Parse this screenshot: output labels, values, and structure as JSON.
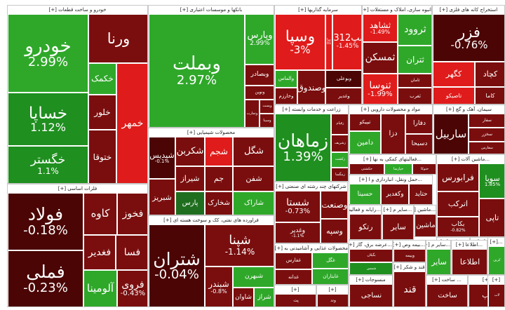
{
  "colors": {
    "strong_positive": "#2fa82a",
    "mid_positive": "#1f8f1f",
    "weak_positive": "#1f6e1f",
    "weak_negative": "#7a0e0e",
    "strong_negative": "#4b0505",
    "bright_negative": "#e01b1b"
  },
  "sectors": [
    {
      "header": "خودرو و ساخت قطعات [+]",
      "tiles": [
        {
          "symbol": "خودرو",
          "change": "2.99%",
          "tone": "strong_positive"
        },
        {
          "symbol": "خساپا",
          "change": "1.12%",
          "tone": "mid_positive"
        },
        {
          "symbol": "خگستر",
          "change": "1.1%",
          "tone": "mid_positive"
        },
        {
          "symbol": "ورنا",
          "change": "",
          "tone": "weak_negative"
        },
        {
          "symbol": "خکمک",
          "change": "",
          "tone": "strong_positive"
        },
        {
          "symbol": "خلور",
          "change": "",
          "tone": "weak_negative"
        },
        {
          "symbol": "ختوقا",
          "change": "",
          "tone": "weak_negative"
        },
        {
          "symbol": "خمهر",
          "change": "",
          "tone": "bright_negative"
        }
      ]
    },
    {
      "header": "فلزات اساسی [+]",
      "tiles": [
        {
          "symbol": "فولاد",
          "change": "-0.18%",
          "tone": "strong_negative"
        },
        {
          "symbol": "فملی",
          "change": "-0.23%",
          "tone": "strong_negative"
        },
        {
          "symbol": "کاوه",
          "change": "",
          "tone": "weak_negative"
        },
        {
          "symbol": "فخوز",
          "change": "",
          "tone": "weak_negative"
        },
        {
          "symbol": "فغدیر",
          "change": "",
          "tone": "weak_negative"
        },
        {
          "symbol": "فسا",
          "change": "",
          "tone": "weak_negative"
        },
        {
          "symbol": "آلومینا",
          "change": "",
          "tone": "strong_positive"
        },
        {
          "symbol": "فروی",
          "change": "-0.43%",
          "tone": "weak_negative"
        }
      ]
    },
    {
      "header": "بانکها و موسسات اعتباری [+]",
      "tiles": [
        {
          "symbol": "وبملت",
          "change": "2.97%",
          "tone": "strong_positive"
        },
        {
          "symbol": "وپارس",
          "change": "2.99%",
          "tone": "strong_positive"
        },
        {
          "symbol": "وبصادر",
          "change": "",
          "tone": "weak_negative"
        },
        {
          "symbol": "ونوین",
          "change": "",
          "tone": "weak_negative"
        },
        {
          "symbol": "وتجارت",
          "change": "",
          "tone": "weak_negative"
        },
        {
          "symbol": "وپست",
          "change": "",
          "tone": "weak_negative"
        },
        {
          "symbol": "وسینا",
          "change": "",
          "tone": "weak_negative"
        }
      ]
    },
    {
      "header": "محصولات شیمیایی [+]",
      "tiles": [
        {
          "symbol": "شپدیس",
          "change": "-0.1%",
          "tone": "strong_negative"
        },
        {
          "symbol": "شکربن",
          "change": "",
          "tone": "weak_negative"
        },
        {
          "symbol": "شجم",
          "change": "",
          "tone": "bright_negative"
        },
        {
          "symbol": "شگل",
          "change": "",
          "tone": "weak_negative"
        },
        {
          "symbol": "شیراز",
          "change": "",
          "tone": "weak_negative"
        },
        {
          "symbol": "جم",
          "change": "",
          "tone": "weak_negative"
        },
        {
          "symbol": "شفن",
          "change": "",
          "tone": "weak_negative"
        },
        {
          "symbol": "پارس",
          "change": "",
          "tone": "weak_positive"
        },
        {
          "symbol": "شخارک",
          "change": "",
          "tone": "weak_negative"
        },
        {
          "symbol": "شاراک",
          "change": "",
          "tone": "strong_positive"
        },
        {
          "symbol": "شبریز",
          "change": "",
          "tone": "weak_negative"
        },
        {
          "symbol": "شفارس",
          "change": "",
          "tone": "strong_positive"
        }
      ]
    },
    {
      "header": "فراورده های نفتی، کک و سوخت هسته ای [+]",
      "tiles": [
        {
          "symbol": "شتران",
          "change": "-0.04%",
          "tone": "strong_negative"
        },
        {
          "symbol": "شپنا",
          "change": "-1.14%",
          "tone": "weak_negative"
        },
        {
          "symbol": "شبندر",
          "change": "-0.8%",
          "tone": "weak_negative"
        },
        {
          "symbol": "شبهرن",
          "change": "",
          "tone": "strong_positive"
        },
        {
          "symbol": "شاوان",
          "change": "",
          "tone": "weak_negative"
        },
        {
          "symbol": "شراز",
          "change": "",
          "tone": "strong_positive"
        }
      ]
    },
    {
      "header": "سرمایه گذاریها [+]",
      "tiles": [
        {
          "symbol": "وسپا",
          "change": "-3%",
          "tone": "bright_negative"
        },
        {
          "symbol": "سا",
          "change": "01",
          "tone": "bright_negative"
        },
        {
          "symbol": "سپ0312",
          "change": "-1.45%",
          "tone": "bright_negative"
        },
        {
          "symbol": "والماس",
          "change": "",
          "tone": "strong_positive"
        },
        {
          "symbol": "وخارزم",
          "change": "",
          "tone": "weak_negative"
        },
        {
          "symbol": "وصندوق",
          "change": "",
          "tone": "weak_negative"
        },
        {
          "symbol": "وبوعلی",
          "change": "",
          "tone": "strong_negative"
        },
        {
          "symbol": "وغدیر",
          "change": "",
          "tone": "weak_negative"
        }
      ]
    },
    {
      "header": "انبوه سازی، املاک و مستغلات [+]",
      "tiles": [
        {
          "symbol": "ثشاهد",
          "change": "-1.49%",
          "tone": "bright_negative"
        },
        {
          "symbol": "ثمسکن",
          "change": "",
          "tone": "weak_negative"
        },
        {
          "symbol": "ثنوسا",
          "change": "-1.99%",
          "tone": "bright_negative"
        },
        {
          "symbol": "ثروود",
          "change": "",
          "tone": "strong_positive"
        },
        {
          "symbol": "ثتران",
          "change": "",
          "tone": "strong_positive"
        },
        {
          "symbol": "ثامان",
          "change": "",
          "tone": "weak_negative"
        },
        {
          "symbol": "ثغرب",
          "change": "",
          "tone": "weak_negative"
        },
        {
          "symbol": "ثباغ",
          "change": "",
          "tone": "strong_positive"
        },
        {
          "symbol": "ثعمرا",
          "change": "",
          "tone": "strong_positive"
        }
      ]
    },
    {
      "header": "استخراج کانه های فلزی [+]",
      "tiles": [
        {
          "symbol": "فزر",
          "change": "-0.76%",
          "tone": "strong_negative"
        },
        {
          "symbol": "کگهر",
          "change": "",
          "tone": "bright_negative"
        },
        {
          "symbol": "کچاد",
          "change": "",
          "tone": "weak_negative"
        },
        {
          "symbol": "کاما",
          "change": "",
          "tone": "weak_negative"
        },
        {
          "symbol": "تاصیکو",
          "change": "",
          "tone": "bright_negative"
        },
        {
          "symbol": "کگل",
          "change": "",
          "tone": "strong_negative"
        },
        {
          "symbol": "کروی",
          "change": "",
          "tone": "weak_negative"
        }
      ]
    },
    {
      "header": "زراعت و خدمات وابسته [+]",
      "tiles": [
        {
          "symbol": "زماهان",
          "change": "1.39%",
          "tone": "mid_positive"
        },
        {
          "symbol": "زقیام",
          "change": "",
          "tone": "weak_negative"
        },
        {
          "symbol": "زشریف",
          "change": "",
          "tone": "weak_negative"
        },
        {
          "symbol": "زکشت",
          "change": "",
          "tone": "strong_positive"
        },
        {
          "symbol": "زمگسا",
          "change": "",
          "tone": "weak_negative"
        }
      ]
    },
    {
      "header": "مواد و محصولات دارویی [+]",
      "tiles": [
        {
          "symbol": "تیپیکو",
          "change": "",
          "tone": "weak_negative"
        },
        {
          "symbol": "دامین",
          "change": "",
          "tone": "strong_positive"
        },
        {
          "symbol": "دزا",
          "change": "",
          "tone": "weak_negative"
        },
        {
          "symbol": "دفارا",
          "change": "",
          "tone": "weak_negative"
        },
        {
          "symbol": "دسبحا",
          "change": "",
          "tone": "weak_negative"
        },
        {
          "symbol": "دلر",
          "change": "",
          "tone": "weak_negative"
        },
        {
          "symbol": "دجابر",
          "change": "",
          "tone": "strong_positive"
        }
      ]
    },
    {
      "header": "سیمان، آهک و گچ [+]",
      "tiles": [
        {
          "symbol": "ساربیل",
          "change": "",
          "tone": "strong_negative"
        },
        {
          "symbol": "سفار",
          "change": "",
          "tone": "weak_negative"
        },
        {
          "symbol": "سخزر",
          "change": "",
          "tone": "weak_negative"
        },
        {
          "symbol": "سفارس",
          "change": "",
          "tone": "weak_negative"
        },
        {
          "symbol": "سصفها",
          "change": "",
          "tone": "strong_positive"
        },
        {
          "symbol": "سشرق",
          "change": "",
          "tone": "weak_negative"
        }
      ]
    },
    {
      "header": "شرکتهای چند رشته ای صنعتی [+]",
      "tiles": [
        {
          "symbol": "شستا",
          "change": "-0.73%",
          "tone": "weak_negative"
        },
        {
          "symbol": "وغدیر",
          "change": "-1.1%",
          "tone": "weak_negative"
        },
        {
          "symbol": "وصنعت",
          "change": "",
          "tone": "weak_negative"
        },
        {
          "symbol": "وسپه",
          "change": "",
          "tone": "weak_negative"
        },
        {
          "symbol": "واتی",
          "change": "",
          "tone": "strong_negative"
        }
      ]
    },
    {
      "header": "...فعالیتهای کمکی به نها [+]",
      "tiles": [
        {
          "symbol": "حکشتی",
          "change": "",
          "tone": "weak_negative"
        },
        {
          "symbol": "حپارسا",
          "change": "",
          "tone": "strong_positive"
        },
        {
          "symbol": "حتوکا",
          "change": "",
          "tone": "weak_negative"
        }
      ]
    },
    {
      "header": "...حمل ونقل، انبارداری و ا [+]",
      "tiles": [
        {
          "symbol": "حسینا",
          "change": "",
          "tone": "strong_positive"
        },
        {
          "symbol": "وکغدیر",
          "change": "",
          "tone": "weak_negative"
        },
        {
          "symbol": "حتاید",
          "change": "",
          "tone": "weak_negative"
        }
      ]
    },
    {
      "header": "...ماشین آلات [+]",
      "tiles": [
        {
          "symbol": "فرابورس",
          "change": "",
          "tone": "weak_negative"
        },
        {
          "symbol": "سوپا",
          "change": "1.85%",
          "tone": "mid_positive"
        },
        {
          "symbol": "اترکب",
          "change": "",
          "tone": "weak_negative"
        },
        {
          "symbol": "بکاب",
          "change": "-0.82%",
          "tone": "weak_negative"
        },
        {
          "symbol": "تاپی",
          "change": "",
          "tone": "weak_negative"
        }
      ]
    },
    {
      "header": "...رایانه و فعالیت [+]",
      "tiles": [
        {
          "symbol": "رتکو",
          "change": "",
          "tone": "weak_negative"
        }
      ]
    },
    {
      "header": "...سایر م [+]",
      "tiles": [
        {
          "symbol": "سایر",
          "change": "",
          "tone": "weak_negative"
        }
      ]
    },
    {
      "header": "...ماشین [+]",
      "tiles": [
        {
          "symbol": "ماشین",
          "change": "",
          "tone": "weak_negative"
        }
      ]
    },
    {
      "header": "...ساس [+]",
      "tiles": [
        {
          "symbol": "ساس",
          "change": "",
          "tone": "weak_negative"
        }
      ]
    },
    {
      "header": "...تک [+]",
      "tiles": [
        {
          "symbol": "تک",
          "change": "",
          "tone": "weak_negative"
        }
      ]
    },
    {
      "header": "...عرضه برق، گاز [+]",
      "tiles": [
        {
          "symbol": "بگیلان",
          "change": "",
          "tone": "weak_negative"
        },
        {
          "symbol": "شمس",
          "change": "",
          "tone": "mid_positive"
        }
      ]
    },
    {
      "header": "...بیمه وص [+]",
      "tiles": [
        {
          "symbol": "وبیمه",
          "change": "",
          "tone": "weak_negative"
        }
      ]
    },
    {
      "header": "...سایر م [+]",
      "tiles": [
        {
          "symbol": "سایر",
          "change": "",
          "tone": "strong_positive"
        }
      ]
    },
    {
      "header": "...اطلاعا [+]",
      "tiles": [
        {
          "symbol": "اطلاعا",
          "change": "",
          "tone": "weak_negative"
        }
      ]
    },
    {
      "header": "...[+]",
      "tiles": [
        {
          "symbol": "کرین",
          "change": "",
          "tone": "strong_positive"
        }
      ]
    },
    {
      "header": "محصولات غذایی و آشامیدنی به [+]",
      "tiles": [
        {
          "symbol": "غفارس",
          "change": "",
          "tone": "weak_negative"
        },
        {
          "symbol": "غگل",
          "change": "",
          "tone": "strong_positive"
        },
        {
          "symbol": "غدانه",
          "change": "",
          "tone": "weak_negative"
        },
        {
          "symbol": "غابتاران",
          "change": "",
          "tone": "strong_positive"
        },
        {
          "symbol": "غپینو",
          "change": "",
          "tone": "weak_negative"
        }
      ]
    },
    {
      "header": "منسوجات [+]",
      "tiles": [
        {
          "symbol": "نساجی",
          "change": "",
          "tone": "weak_negative"
        }
      ]
    },
    {
      "header": "قند و شکر [+]",
      "tiles": [
        {
          "symbol": "قند",
          "change": "",
          "tone": "weak_negative"
        }
      ]
    },
    {
      "header": "... ساخت [+]",
      "tiles": [
        {
          "symbol": "ساخت",
          "change": "",
          "tone": "weak_negative"
        }
      ]
    },
    {
      "header": "[+]",
      "tiles": [
        {
          "symbol": "کپ",
          "change": "",
          "tone": "weak_negative"
        }
      ]
    },
    {
      "header": "[+]",
      "tiles": [
        {
          "symbol": "پت",
          "change": "",
          "tone": "weak_negative"
        }
      ]
    },
    {
      "header": "[+]",
      "tiles": [
        {
          "symbol": "وتد",
          "change": "",
          "tone": "weak_negative"
        }
      ]
    },
    {
      "header": "[+]",
      "tiles": [
        {
          "symbol": "لاب",
          "change": "",
          "tone": "weak_negative"
        }
      ]
    }
  ]
}
